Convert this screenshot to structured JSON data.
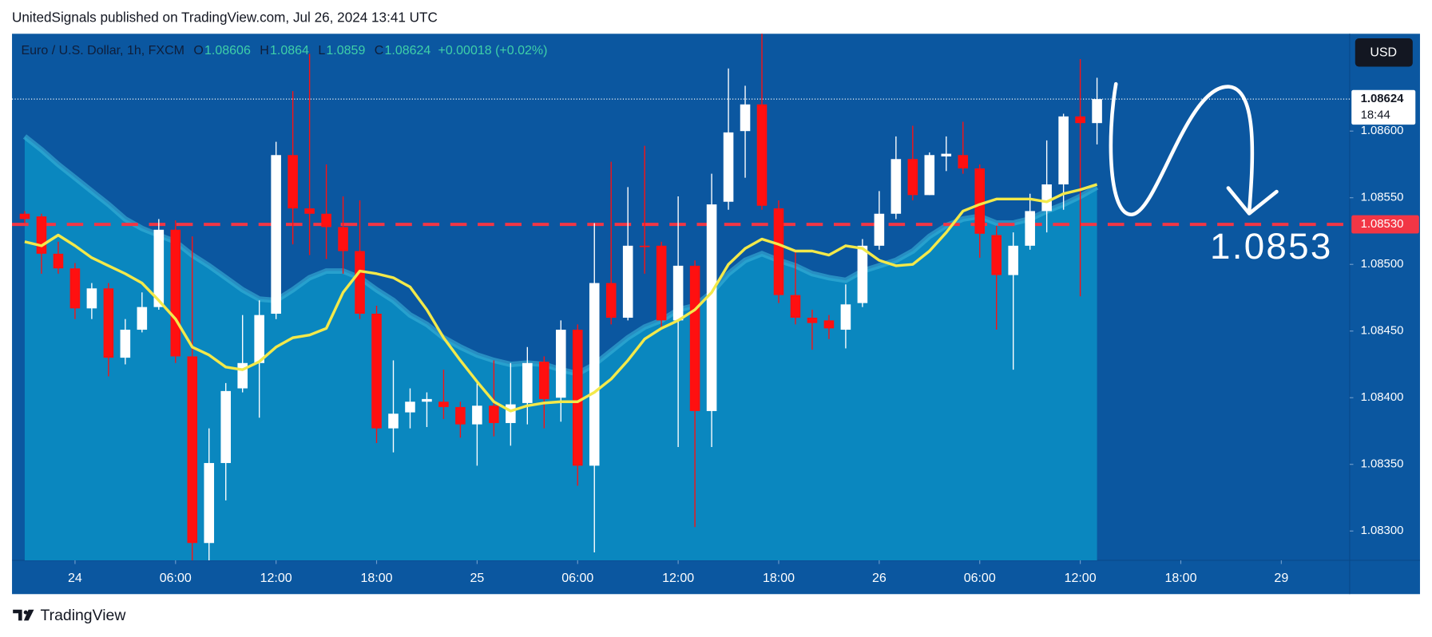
{
  "chart_data": {
    "type": "candlestick",
    "header": "UnitedSignals published on TradingView.com, Jul 26, 2024 13:41 UTC",
    "symbol": "Euro / U.S. Dollar, 1h, FXCM",
    "ohlc_labels": [
      "O",
      "H",
      "L",
      "C"
    ],
    "change": "+0.00018 (+0.02%)",
    "currency": "USD",
    "countdown": "18:44",
    "brand": "TradingView",
    "x": [
      -3,
      -2,
      -1,
      0,
      1,
      2,
      3,
      4,
      5,
      6,
      7,
      8,
      9,
      10,
      11,
      12,
      13,
      14,
      15,
      16,
      17,
      18,
      19,
      20,
      21,
      22,
      23,
      24,
      25,
      26,
      27,
      28,
      29,
      30,
      31,
      32,
      33,
      34,
      35,
      36,
      37,
      38,
      39,
      40,
      41,
      42,
      43,
      44,
      45,
      46,
      47,
      48,
      49,
      50,
      51,
      52,
      53,
      54,
      55,
      56,
      57,
      58,
      59,
      60,
      61
    ],
    "open": [
      1.08538,
      1.08536,
      1.08508,
      1.08497,
      1.08467,
      1.08482,
      1.0843,
      1.08451,
      1.08468,
      1.08526,
      1.08431,
      1.08291,
      1.08351,
      1.08407,
      1.08426,
      1.08463,
      1.08582,
      1.08542,
      1.08538,
      1.08528,
      1.0851,
      1.08463,
      1.08377,
      1.08389,
      1.08397,
      1.08397,
      1.08393,
      1.0838,
      1.08394,
      1.08381,
      1.08396,
      1.08427,
      1.084,
      1.08451,
      1.08349,
      1.08486,
      1.0846,
      1.08514,
      1.08514,
      1.08458,
      1.08499,
      1.0839,
      1.08547,
      1.086,
      1.0862,
      1.08542,
      1.08477,
      1.0846,
      1.08458,
      1.08451,
      1.08471,
      1.08514,
      1.08538,
      1.08579,
      1.08552,
      1.08581,
      1.08582,
      1.08572,
      1.08522,
      1.08492,
      1.08514,
      1.0854,
      1.0856,
      1.08611,
      1.08606
    ],
    "high": [
      1.0854,
      1.08538,
      1.08517,
      1.08501,
      1.08486,
      1.08486,
      1.08459,
      1.08479,
      1.08534,
      1.08533,
      1.08521,
      1.08377,
      1.08411,
      1.08462,
      1.08473,
      1.08592,
      1.0863,
      1.08658,
      1.08575,
      1.08551,
      1.08548,
      1.08469,
      1.08428,
      1.08407,
      1.08404,
      1.08421,
      1.08397,
      1.08411,
      1.08428,
      1.08426,
      1.08438,
      1.08431,
      1.08458,
      1.08455,
      1.08531,
      1.08577,
      1.08558,
      1.08589,
      1.08517,
      1.08551,
      1.08503,
      1.08568,
      1.08647,
      1.08634,
      1.08673,
      1.08548,
      1.0851,
      1.08466,
      1.08462,
      1.08485,
      1.08519,
      1.08555,
      1.08596,
      1.08604,
      1.08584,
      1.08596,
      1.08607,
      1.08575,
      1.08529,
      1.08524,
      1.08553,
      1.08593,
      1.08613,
      1.08654,
      1.0864
    ],
    "low": [
      1.08531,
      1.08493,
      1.08493,
      1.08459,
      1.08459,
      1.08416,
      1.08425,
      1.08449,
      1.08466,
      1.08426,
      1.08278,
      1.08278,
      1.08323,
      1.08404,
      1.08385,
      1.08459,
      1.08515,
      1.08507,
      1.08504,
      1.08493,
      1.08459,
      1.08366,
      1.08359,
      1.08377,
      1.08378,
      1.08384,
      1.0837,
      1.08349,
      1.08371,
      1.08364,
      1.0838,
      1.08377,
      1.08382,
      1.08334,
      1.08284,
      1.08455,
      1.08458,
      1.08493,
      1.08452,
      1.08363,
      1.08303,
      1.08363,
      1.08541,
      1.08565,
      1.08541,
      1.08471,
      1.08455,
      1.08436,
      1.08444,
      1.08437,
      1.08468,
      1.08511,
      1.08534,
      1.08548,
      1.08552,
      1.0857,
      1.08568,
      1.08505,
      1.08451,
      1.08421,
      1.08511,
      1.08524,
      1.08541,
      1.08476,
      1.0859
    ],
    "close": [
      1.08534,
      1.08508,
      1.08497,
      1.08467,
      1.08482,
      1.0843,
      1.08451,
      1.08468,
      1.08526,
      1.08431,
      1.08291,
      1.08351,
      1.08405,
      1.08426,
      1.08462,
      1.08582,
      1.08542,
      1.08538,
      1.08528,
      1.0851,
      1.08463,
      1.08377,
      1.08388,
      1.08397,
      1.08399,
      1.08393,
      1.0838,
      1.08394,
      1.08381,
      1.08395,
      1.08426,
      1.08399,
      1.08451,
      1.08349,
      1.08486,
      1.0846,
      1.08514,
      1.08513,
      1.08458,
      1.08499,
      1.0839,
      1.08545,
      1.08599,
      1.0862,
      1.08544,
      1.08477,
      1.0846,
      1.08456,
      1.08452,
      1.0847,
      1.08514,
      1.08538,
      1.08579,
      1.08552,
      1.08582,
      1.08583,
      1.08572,
      1.08523,
      1.08492,
      1.08514,
      1.0854,
      1.0856,
      1.08611,
      1.08606,
      1.08624
    ],
    "up_color": "#ffffff",
    "down_color": "#ff1010",
    "ma": {
      "color": "#f3e94a",
      "values": [
        1.08517,
        1.08514,
        1.08522,
        1.08514,
        1.08505,
        1.08499,
        1.08493,
        1.08486,
        1.08473,
        1.08459,
        1.08438,
        1.08432,
        1.08423,
        1.08421,
        1.08427,
        1.08438,
        1.08445,
        1.08447,
        1.08452,
        1.08479,
        1.08495,
        1.08493,
        1.0849,
        1.08483,
        1.08466,
        1.08445,
        1.08428,
        1.08412,
        1.08397,
        1.0839,
        1.08394,
        1.08396,
        1.08397,
        1.08397,
        1.08404,
        1.08414,
        1.08428,
        1.08444,
        1.08452,
        1.08458,
        1.08466,
        1.08479,
        1.085,
        1.08512,
        1.08519,
        1.08515,
        1.0851,
        1.0851,
        1.08507,
        1.08514,
        1.08512,
        1.08503,
        1.08499,
        1.085,
        1.0851,
        1.08524,
        1.0854,
        1.08545,
        1.08549,
        1.08549,
        1.08549,
        1.08547,
        1.08553,
        1.08556,
        1.0856
      ]
    },
    "band": {
      "color": "#0a87bf",
      "values": [
        1.08596,
        1.08586,
        1.08575,
        1.08565,
        1.08555,
        1.08545,
        1.08534,
        1.08527,
        1.08522,
        1.08517,
        1.08507,
        1.08499,
        1.0849,
        1.08481,
        1.08474,
        1.08473,
        1.08481,
        1.0849,
        1.08495,
        1.08495,
        1.0849,
        1.08481,
        1.08473,
        1.08462,
        1.08455,
        1.08445,
        1.08438,
        1.08432,
        1.08428,
        1.08425,
        1.08426,
        1.08425,
        1.08421,
        1.08418,
        1.08425,
        1.08435,
        1.08445,
        1.08453,
        1.08458,
        1.08466,
        1.08469,
        1.08479,
        1.08493,
        1.08503,
        1.08508,
        1.08503,
        1.08499,
        1.08493,
        1.0849,
        1.08488,
        1.08495,
        1.08499,
        1.08503,
        1.0851,
        1.08521,
        1.08529,
        1.08534,
        1.08536,
        1.08531,
        1.08531,
        1.08534,
        1.0854,
        1.08545,
        1.08551,
        1.08558
      ]
    },
    "hline": {
      "value": 1.0853,
      "label": "1.08530",
      "color": "#f23645"
    },
    "xlim": [
      -3.76,
      76.08
    ],
    "xticks": [
      {
        "value": 0,
        "label": "24"
      },
      {
        "value": 6,
        "label": "06:00"
      },
      {
        "value": 12,
        "label": "12:00"
      },
      {
        "value": 18,
        "label": "18:00"
      },
      {
        "value": 24,
        "label": "25"
      },
      {
        "value": 30,
        "label": "06:00"
      },
      {
        "value": 36,
        "label": "12:00"
      },
      {
        "value": 42,
        "label": "18:00"
      },
      {
        "value": 48,
        "label": "26"
      },
      {
        "value": 54,
        "label": "06:00"
      },
      {
        "value": 60,
        "label": "12:00"
      },
      {
        "value": 66,
        "label": "18:00"
      },
      {
        "value": 72,
        "label": "29"
      }
    ],
    "ylim": [
      1.08278,
      1.08673
    ],
    "yticks": [
      {
        "value": 1.083,
        "label": "1.08300"
      },
      {
        "value": 1.0835,
        "label": "1.08350"
      },
      {
        "value": 1.084,
        "label": "1.08400"
      },
      {
        "value": 1.0845,
        "label": "1.08450"
      },
      {
        "value": 1.085,
        "label": "1.08500"
      },
      {
        "value": 1.0855,
        "label": "1.08550"
      },
      {
        "value": 1.086,
        "label": "1.08600"
      }
    ],
    "grid": false
  }
}
